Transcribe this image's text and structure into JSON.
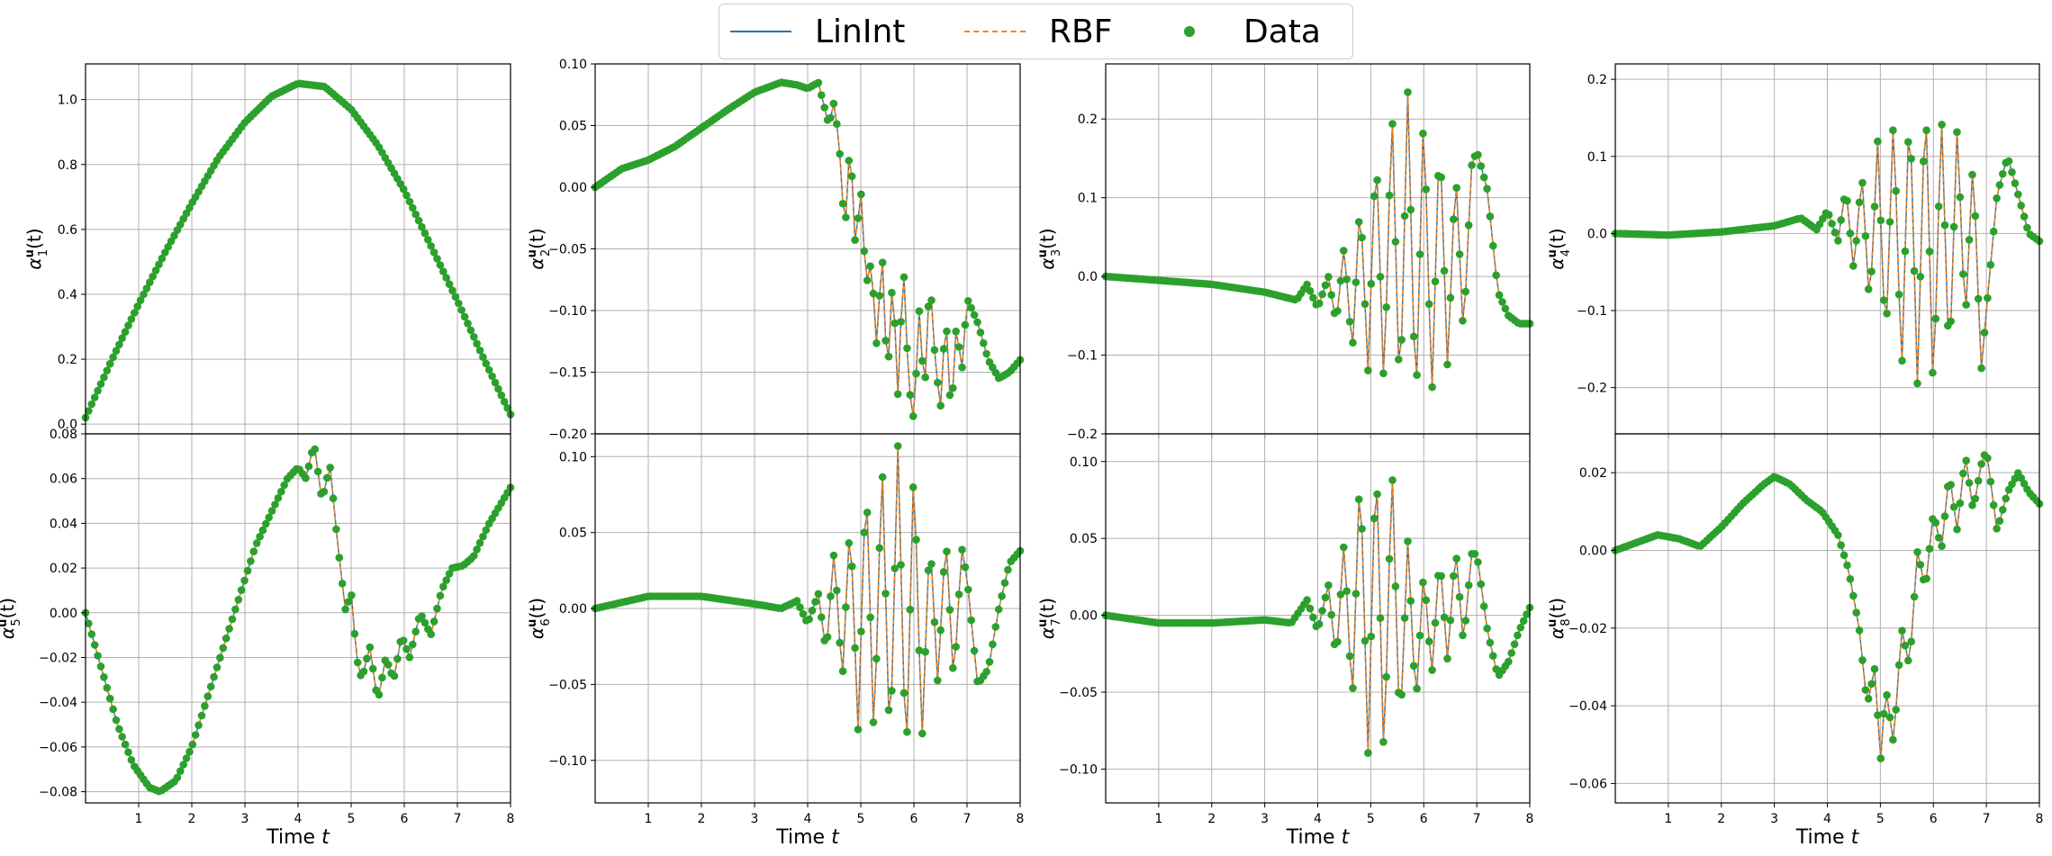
{
  "legend": {
    "items": [
      {
        "label": "LinInt",
        "color": "#1f77b4",
        "style": "solid-line"
      },
      {
        "label": "RBF",
        "color": "#ff7f0e",
        "style": "dashed-line"
      },
      {
        "label": "Data",
        "color": "#2ca02c",
        "style": "marker"
      }
    ]
  },
  "colors": {
    "linint": "#1f77b4",
    "rbf": "#ff7f0e",
    "data": "#2ca02c",
    "grid": "#b0b0b0"
  },
  "chart_data": [
    {
      "type": "line",
      "id": "a1",
      "ylabel_base": "α",
      "ylabel_sup": "u",
      "ylabel_sub": "1",
      "ylabel_tail": "(t)",
      "xlabel": "",
      "xlim": [
        0,
        8
      ],
      "ylim": [
        -0.03,
        1.11
      ],
      "xticks": [
        1,
        2,
        3,
        4,
        5,
        6,
        7,
        8
      ],
      "yticks": [
        0.0,
        0.2,
        0.4,
        0.6,
        0.8,
        1.0
      ],
      "ytick_labels": [
        "0.0",
        "0.2",
        "0.4",
        "0.6",
        "0.8",
        "1.0"
      ],
      "show_xtick_labels": false,
      "x": [
        0.0,
        0.5,
        1.0,
        1.5,
        2.0,
        2.5,
        3.0,
        3.5,
        4.0,
        4.5,
        5.0,
        5.5,
        6.0,
        6.5,
        7.0,
        7.5,
        8.0
      ],
      "y": [
        0.02,
        0.2,
        0.37,
        0.53,
        0.68,
        0.82,
        0.93,
        1.01,
        1.05,
        1.04,
        0.97,
        0.86,
        0.72,
        0.55,
        0.38,
        0.2,
        0.03
      ]
    },
    {
      "type": "line",
      "id": "a2",
      "ylabel_base": "α",
      "ylabel_sup": "u",
      "ylabel_sub": "2",
      "ylabel_tail": "(t)",
      "xlabel": "",
      "xlim": [
        0,
        8
      ],
      "ylim": [
        -0.2,
        0.1
      ],
      "xticks": [
        1,
        2,
        3,
        4,
        5,
        6,
        7,
        8
      ],
      "yticks": [
        -0.2,
        -0.15,
        -0.1,
        -0.05,
        0.0,
        0.05,
        0.1
      ],
      "ytick_labels": [
        "−0.20",
        "−0.15",
        "−0.10",
        "−0.05",
        "0.00",
        "0.05",
        "0.10"
      ],
      "show_xtick_labels": false,
      "x": [
        0.0,
        0.5,
        1.0,
        1.5,
        2.0,
        2.5,
        3.0,
        3.5,
        3.8,
        4.0,
        4.2,
        4.4,
        4.5,
        4.6,
        4.7,
        4.8,
        4.9,
        5.0,
        5.1,
        5.2,
        5.3,
        5.4,
        5.5,
        5.6,
        5.7,
        5.8,
        5.9,
        6.0,
        6.1,
        6.2,
        6.3,
        6.4,
        6.5,
        6.6,
        6.7,
        6.8,
        6.9,
        7.0,
        7.2,
        7.4,
        7.6,
        7.8,
        8.0
      ],
      "y": [
        0.0,
        0.015,
        0.022,
        0.033,
        0.048,
        0.063,
        0.077,
        0.085,
        0.083,
        0.08,
        0.085,
        0.05,
        0.07,
        0.03,
        -0.04,
        0.04,
        -0.05,
        0.0,
        -0.08,
        -0.06,
        -0.13,
        -0.05,
        -0.16,
        -0.07,
        -0.17,
        -0.06,
        -0.16,
        -0.19,
        -0.1,
        -0.17,
        -0.07,
        -0.14,
        -0.18,
        -0.1,
        -0.19,
        -0.11,
        -0.15,
        -0.09,
        -0.11,
        -0.14,
        -0.155,
        -0.15,
        -0.14
      ]
    },
    {
      "type": "line",
      "id": "a3",
      "ylabel_base": "α",
      "ylabel_sup": "u",
      "ylabel_sub": "3",
      "ylabel_tail": "(t)",
      "xlabel": "",
      "xlim": [
        0,
        8
      ],
      "ylim": [
        -0.2,
        0.27
      ],
      "xticks": [
        1,
        2,
        3,
        4,
        5,
        6,
        7,
        8
      ],
      "yticks": [
        -0.2,
        -0.1,
        0.0,
        0.1,
        0.2
      ],
      "ytick_labels": [
        "−0.2",
        "−0.1",
        "0.0",
        "0.1",
        "0.2"
      ],
      "show_xtick_labels": false,
      "x": [
        0.0,
        1.0,
        2.0,
        3.0,
        3.6,
        3.8,
        4.0,
        4.2,
        4.35,
        4.5,
        4.65,
        4.8,
        4.95,
        5.1,
        5.25,
        5.4,
        5.55,
        5.7,
        5.85,
        6.0,
        6.15,
        6.3,
        6.45,
        6.6,
        6.75,
        6.9,
        7.0,
        7.2,
        7.4,
        7.6,
        7.8,
        8.0
      ],
      "y": [
        0.0,
        -0.005,
        -0.01,
        -0.02,
        -0.03,
        -0.01,
        -0.04,
        0.0,
        -0.06,
        0.04,
        -0.1,
        0.1,
        -0.12,
        0.17,
        -0.15,
        0.22,
        -0.17,
        0.24,
        -0.18,
        0.22,
        -0.16,
        0.19,
        -0.12,
        0.14,
        -0.08,
        0.14,
        0.16,
        0.11,
        -0.02,
        -0.05,
        -0.06,
        -0.06
      ]
    },
    {
      "type": "line",
      "id": "a4",
      "ylabel_base": "α",
      "ylabel_sup": "u",
      "ylabel_sub": "4",
      "ylabel_tail": "(t)",
      "xlabel": "",
      "xlim": [
        0,
        8
      ],
      "ylim": [
        -0.26,
        0.22
      ],
      "xticks": [
        1,
        2,
        3,
        4,
        5,
        6,
        7,
        8
      ],
      "yticks": [
        -0.2,
        -0.1,
        0.0,
        0.1,
        0.2
      ],
      "ytick_labels": [
        "−0.2",
        "−0.1",
        "0.0",
        "0.1",
        "0.2"
      ],
      "show_xtick_labels": false,
      "x": [
        0.0,
        1.0,
        2.0,
        3.0,
        3.5,
        3.8,
        4.0,
        4.2,
        4.35,
        4.5,
        4.65,
        4.8,
        4.95,
        5.1,
        5.25,
        5.4,
        5.55,
        5.7,
        5.85,
        6.0,
        6.15,
        6.3,
        6.45,
        6.6,
        6.75,
        6.9,
        7.0,
        7.2,
        7.4,
        7.6,
        7.8,
        8.0
      ],
      "y": [
        0.0,
        -0.002,
        0.002,
        0.01,
        0.02,
        0.005,
        0.03,
        -0.01,
        0.06,
        -0.05,
        0.08,
        -0.1,
        0.12,
        -0.15,
        0.16,
        -0.19,
        0.18,
        -0.2,
        0.19,
        -0.22,
        0.16,
        -0.18,
        0.14,
        -0.12,
        0.1,
        -0.18,
        -0.1,
        0.05,
        0.1,
        0.05,
        0.0,
        -0.01
      ]
    },
    {
      "type": "line",
      "id": "a5",
      "ylabel_base": "α",
      "ylabel_sup": "u",
      "ylabel_sub": "5",
      "ylabel_tail": "(t)",
      "xlabel": "Time",
      "xlabel_var": "t",
      "xlim": [
        0,
        8
      ],
      "ylim": [
        -0.085,
        0.08
      ],
      "xticks": [
        1,
        2,
        3,
        4,
        5,
        6,
        7,
        8
      ],
      "yticks": [
        -0.08,
        -0.06,
        -0.04,
        -0.02,
        0.0,
        0.02,
        0.04,
        0.06,
        0.08
      ],
      "ytick_labels": [
        "−0.08",
        "−0.06",
        "−0.04",
        "−0.02",
        "0.00",
        "0.02",
        "0.04",
        "0.06",
        "0.08"
      ],
      "show_xtick_labels": true,
      "x": [
        0.0,
        0.3,
        0.6,
        0.9,
        1.2,
        1.4,
        1.7,
        2.0,
        2.4,
        2.8,
        3.2,
        3.5,
        3.8,
        4.0,
        4.15,
        4.3,
        4.45,
        4.6,
        4.75,
        4.9,
        5.0,
        5.1,
        5.2,
        5.35,
        5.5,
        5.65,
        5.8,
        5.95,
        6.1,
        6.3,
        6.5,
        6.7,
        6.9,
        7.1,
        7.3,
        7.6,
        8.0
      ],
      "y": [
        0.0,
        -0.025,
        -0.05,
        -0.068,
        -0.078,
        -0.08,
        -0.075,
        -0.06,
        -0.03,
        0.0,
        0.03,
        0.045,
        0.06,
        0.065,
        0.06,
        0.076,
        0.05,
        0.066,
        0.03,
        0.0,
        0.01,
        -0.02,
        -0.03,
        -0.015,
        -0.04,
        -0.02,
        -0.03,
        -0.01,
        -0.02,
        0.0,
        -0.01,
        0.01,
        0.02,
        0.021,
        0.025,
        0.04,
        0.056
      ]
    },
    {
      "type": "line",
      "id": "a6",
      "ylabel_base": "α",
      "ylabel_sup": "u",
      "ylabel_sub": "6",
      "ylabel_tail": "(t)",
      "xlabel": "Time",
      "xlabel_var": "t",
      "xlim": [
        0,
        8
      ],
      "ylim": [
        -0.128,
        0.115
      ],
      "xticks": [
        1,
        2,
        3,
        4,
        5,
        6,
        7,
        8
      ],
      "yticks": [
        -0.1,
        -0.05,
        0.0,
        0.05,
        0.1
      ],
      "ytick_labels": [
        "−0.10",
        "−0.05",
        "0.00",
        "0.05",
        "0.10"
      ],
      "show_xtick_labels": true,
      "x": [
        0.0,
        1.0,
        2.0,
        3.0,
        3.5,
        3.8,
        4.0,
        4.2,
        4.35,
        4.5,
        4.65,
        4.8,
        4.95,
        5.1,
        5.25,
        5.4,
        5.55,
        5.7,
        5.85,
        6.0,
        6.15,
        6.3,
        6.45,
        6.6,
        6.75,
        6.9,
        7.0,
        7.2,
        7.4,
        7.6,
        7.8,
        8.0
      ],
      "y": [
        0.0,
        0.008,
        0.008,
        0.003,
        0.0,
        0.005,
        -0.01,
        0.01,
        -0.03,
        0.04,
        -0.05,
        0.06,
        -0.08,
        0.09,
        -0.09,
        0.1,
        -0.1,
        0.11,
        -0.11,
        0.1,
        -0.09,
        0.05,
        -0.05,
        0.05,
        -0.05,
        0.04,
        0.02,
        -0.05,
        -0.04,
        0.0,
        0.03,
        0.038
      ]
    },
    {
      "type": "line",
      "id": "a7",
      "ylabel_base": "α",
      "ylabel_sup": "u",
      "ylabel_sub": "7",
      "ylabel_tail": "(t)",
      "xlabel": "Time",
      "xlabel_var": "t",
      "xlim": [
        0,
        8
      ],
      "ylim": [
        -0.122,
        0.118
      ],
      "xticks": [
        1,
        2,
        3,
        4,
        5,
        6,
        7,
        8
      ],
      "yticks": [
        -0.1,
        -0.05,
        0.0,
        0.05,
        0.1
      ],
      "ytick_labels": [
        "−0.10",
        "−0.05",
        "0.00",
        "0.05",
        "0.10"
      ],
      "show_xtick_labels": true,
      "x": [
        0.0,
        1.0,
        2.0,
        3.0,
        3.5,
        3.8,
        4.0,
        4.2,
        4.35,
        4.5,
        4.65,
        4.8,
        4.95,
        5.1,
        5.25,
        5.4,
        5.55,
        5.7,
        5.85,
        6.0,
        6.15,
        6.3,
        6.45,
        6.6,
        6.75,
        6.9,
        7.0,
        7.2,
        7.4,
        7.6,
        7.8,
        8.0
      ],
      "y": [
        0.0,
        -0.005,
        -0.005,
        -0.003,
        -0.005,
        0.01,
        -0.01,
        0.02,
        -0.03,
        0.05,
        -0.06,
        0.1,
        -0.09,
        0.11,
        -0.1,
        0.1,
        -0.08,
        0.05,
        -0.06,
        0.03,
        -0.04,
        0.04,
        -0.03,
        0.045,
        -0.02,
        0.04,
        0.04,
        -0.01,
        -0.04,
        -0.03,
        -0.01,
        0.005
      ]
    },
    {
      "type": "line",
      "id": "a8",
      "ylabel_base": "α",
      "ylabel_sup": "u",
      "ylabel_sub": "8",
      "ylabel_tail": "(t)",
      "xlabel": "Time",
      "xlabel_var": "t",
      "xlim": [
        0,
        8
      ],
      "ylim": [
        -0.065,
        0.03
      ],
      "xticks": [
        1,
        2,
        3,
        4,
        5,
        6,
        7,
        8
      ],
      "yticks": [
        -0.06,
        -0.04,
        -0.02,
        0.0,
        0.02
      ],
      "ytick_labels": [
        "−0.06",
        "−0.04",
        "−0.02",
        "0.00",
        "0.02"
      ],
      "show_xtick_labels": true,
      "x": [
        0.0,
        0.4,
        0.8,
        1.2,
        1.6,
        2.0,
        2.4,
        2.8,
        3.0,
        3.3,
        3.6,
        3.9,
        4.2,
        4.4,
        4.6,
        4.75,
        4.9,
        5.0,
        5.1,
        5.25,
        5.4,
        5.55,
        5.7,
        5.85,
        6.0,
        6.15,
        6.3,
        6.45,
        6.6,
        6.75,
        6.9,
        7.0,
        7.2,
        7.4,
        7.6,
        7.8,
        8.0
      ],
      "y": [
        0.0,
        0.002,
        0.004,
        0.003,
        0.001,
        0.006,
        0.012,
        0.017,
        0.019,
        0.017,
        0.013,
        0.01,
        0.004,
        -0.005,
        -0.02,
        -0.04,
        -0.03,
        -0.055,
        -0.035,
        -0.05,
        -0.02,
        -0.03,
        0.0,
        -0.01,
        0.01,
        0.0,
        0.02,
        0.005,
        0.025,
        0.01,
        0.022,
        0.026,
        0.005,
        0.015,
        0.02,
        0.015,
        0.012
      ]
    }
  ]
}
